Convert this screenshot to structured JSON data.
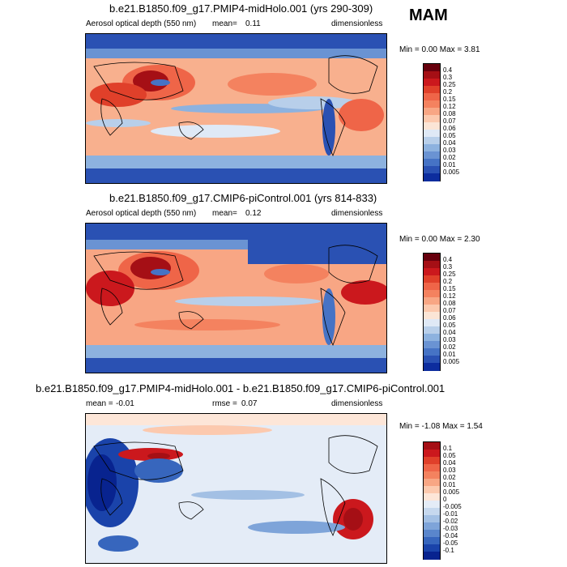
{
  "season": "MAM",
  "panels": [
    {
      "title": "b.e21.B1850.f09_g17.PMIP4-midHolo.001 (yrs 290-309)",
      "left_label": "Aerosol optical depth (550 nm)",
      "mean_label": "mean=",
      "mean_value": "0.11",
      "units": "dimensionless",
      "minmax": "Min =   0.00 Max =   3.81",
      "colorbar": {
        "labels": [
          "0.4",
          "0.3",
          "0.25",
          "0.2",
          "0.15",
          "0.12",
          "0.08",
          "0.07",
          "0.06",
          "0.05",
          "0.04",
          "0.03",
          "0.02",
          "0.01",
          "0.005"
        ],
        "colors": [
          "#67000d",
          "#a50f15",
          "#cb181d",
          "#e0402a",
          "#ef6548",
          "#f4825f",
          "#f8a684",
          "#fcc9ae",
          "#fbe5d6",
          "#dfe9f6",
          "#b8cfea",
          "#8db2df",
          "#6a93d3",
          "#4673c5",
          "#2a51b3",
          "#0d2d9e"
        ]
      }
    },
    {
      "title": "b.e21.B1850.f09_g17.CMIP6-piControl.001 (yrs 814-833)",
      "left_label": "Aerosol optical depth (550 nm)",
      "mean_label": "mean=",
      "mean_value": "0.12",
      "units": "dimensionless",
      "minmax": "Min =   0.00 Max =   2.30",
      "colorbar": {
        "labels": [
          "0.4",
          "0.3",
          "0.25",
          "0.2",
          "0.15",
          "0.12",
          "0.08",
          "0.07",
          "0.06",
          "0.05",
          "0.04",
          "0.03",
          "0.02",
          "0.01",
          "0.005"
        ],
        "colors": [
          "#67000d",
          "#a50f15",
          "#cb181d",
          "#e0402a",
          "#ef6548",
          "#f4825f",
          "#f8a684",
          "#fcc9ae",
          "#fbe5d6",
          "#dfe9f6",
          "#b8cfea",
          "#8db2df",
          "#6a93d3",
          "#4673c5",
          "#2a51b3",
          "#0d2d9e"
        ]
      }
    },
    {
      "title": "b.e21.B1850.f09_g17.PMIP4-midHolo.001 - b.e21.B1850.f09_g17.CMIP6-piControl.001",
      "mean_label": "mean =",
      "mean_value": "-0.01",
      "rmse_label": "rmse =",
      "rmse_value": "0.07",
      "units": "dimensionless",
      "minmax": "Min =  -1.08 Max =   1.54",
      "colorbar": {
        "labels": [
          "0.1",
          "0.05",
          "0.04",
          "0.03",
          "0.02",
          "0.01",
          "0.005",
          "0",
          "-0.005",
          "-0.01",
          "-0.02",
          "-0.03",
          "-0.04",
          "-0.05",
          "-0.1"
        ],
        "colors": [
          "#a50f15",
          "#cb181d",
          "#e0402a",
          "#ef6548",
          "#f4825f",
          "#f8a684",
          "#fcc9ae",
          "#fde6d8",
          "#e4ecf7",
          "#c6d8ee",
          "#a3c0e4",
          "#7ea4d9",
          "#5a86cc",
          "#3766bd",
          "#1a43aa",
          "#08238f"
        ]
      }
    }
  ],
  "chart_data": [
    {
      "type": "heatmap",
      "title": "b.e21.B1850.f09_g17.PMIP4-midHolo.001 (yrs 290-309)",
      "variable": "Aerosol optical depth (550 nm)",
      "season": "MAM",
      "mean": 0.11,
      "min": 0.0,
      "max": 3.81,
      "units": "dimensionless",
      "color_levels": [
        0.005,
        0.01,
        0.02,
        0.03,
        0.04,
        0.05,
        0.06,
        0.07,
        0.08,
        0.12,
        0.15,
        0.2,
        0.25,
        0.3,
        0.4
      ]
    },
    {
      "type": "heatmap",
      "title": "b.e21.B1850.f09_g17.CMIP6-piControl.001 (yrs 814-833)",
      "variable": "Aerosol optical depth (550 nm)",
      "season": "MAM",
      "mean": 0.12,
      "min": 0.0,
      "max": 2.3,
      "units": "dimensionless",
      "color_levels": [
        0.005,
        0.01,
        0.02,
        0.03,
        0.04,
        0.05,
        0.06,
        0.07,
        0.08,
        0.12,
        0.15,
        0.2,
        0.25,
        0.3,
        0.4
      ]
    },
    {
      "type": "heatmap",
      "title": "b.e21.B1850.f09_g17.PMIP4-midHolo.001 - b.e21.B1850.f09_g17.CMIP6-piControl.001",
      "mean": -0.01,
      "rmse": 0.07,
      "min": -1.08,
      "max": 1.54,
      "units": "dimensionless",
      "color_levels": [
        -0.1,
        -0.05,
        -0.04,
        -0.03,
        -0.02,
        -0.01,
        -0.005,
        0,
        0.005,
        0.01,
        0.02,
        0.03,
        0.04,
        0.05,
        0.1
      ]
    }
  ]
}
